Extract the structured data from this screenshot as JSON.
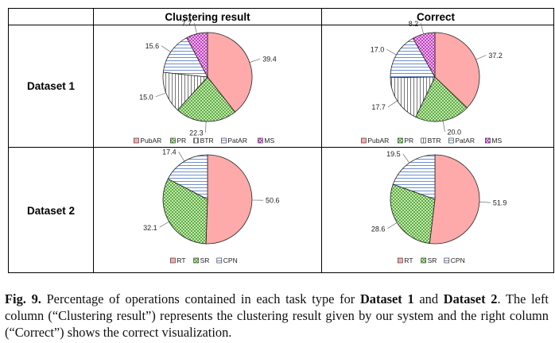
{
  "table": {
    "col_headers": [
      "Clustering result",
      "Correct"
    ],
    "row_headers": [
      "Dataset 1",
      "Dataset 2"
    ]
  },
  "caption": {
    "label": "Fig. 9.",
    "seg1": " Percentage of operations contained in each task type for ",
    "bold1": "Dataset 1",
    "seg2": " and ",
    "bold2": "Dataset 2",
    "seg3": ". The left column (“Clustering result”) represents the clustering result given by our system and the right column (“Correct”) shows the correct visualization."
  },
  "colors": {
    "PubAR": "#ffaaaa",
    "PR": "#5aac3c",
    "BTR": "#888888",
    "PatAR": "#7f9fdd",
    "MS": "#d24fd2",
    "RT": "#ffaaaa",
    "SR": "#5aac3c",
    "CPN": "#7f9fdd"
  },
  "chart_data": [
    {
      "type": "pie",
      "panel": "Dataset 1 / Clustering result",
      "categories": [
        "PubAR",
        "PR",
        "BTR",
        "PatAR",
        "MS"
      ],
      "values": [
        39.4,
        22.3,
        15.0,
        15.6,
        7.7
      ],
      "labels": [
        "39.4",
        "22.3",
        "15.0",
        "15.6",
        "7.7"
      ],
      "legend": [
        "PubAR",
        "PR",
        "BTR",
        "PatAR",
        "MS"
      ],
      "legend_position": "bottom"
    },
    {
      "type": "pie",
      "panel": "Dataset 1 / Correct",
      "categories": [
        "PubAR",
        "PR",
        "BTR",
        "PatAR",
        "MS"
      ],
      "values": [
        37.2,
        20.0,
        17.7,
        17.0,
        8.2
      ],
      "labels": [
        "37.2",
        "20.0",
        "17.7",
        "17.0",
        "8.2"
      ],
      "legend": [
        "PubAR",
        "PR",
        "BTR",
        "PatAR",
        "MS"
      ],
      "legend_position": "bottom"
    },
    {
      "type": "pie",
      "panel": "Dataset 2 / Clustering result",
      "categories": [
        "RT",
        "SR",
        "CPN"
      ],
      "values": [
        50.6,
        32.1,
        17.4
      ],
      "labels": [
        "50.6",
        "32.1",
        "17.4"
      ],
      "legend": [
        "RT",
        "SR",
        "CPN"
      ],
      "legend_position": "bottom"
    },
    {
      "type": "pie",
      "panel": "Dataset 2 / Correct",
      "categories": [
        "RT",
        "SR",
        "CPN"
      ],
      "values": [
        51.9,
        28.6,
        19.5
      ],
      "labels": [
        "51.9",
        "28.6",
        "19.5"
      ],
      "legend": [
        "RT",
        "SR",
        "CPN"
      ],
      "legend_position": "bottom"
    }
  ]
}
